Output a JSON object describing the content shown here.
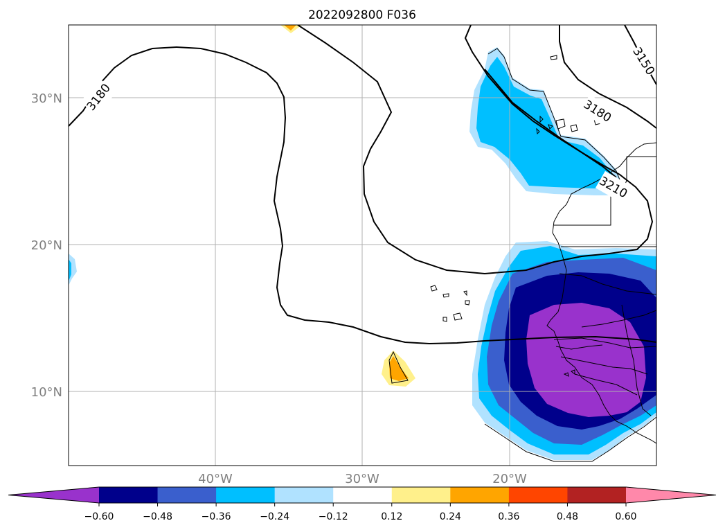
{
  "title": "2022092800 F036",
  "map": {
    "latitude_labels": [
      "30°N",
      "20°N",
      "10°N"
    ],
    "longitude_labels": [
      "40°W",
      "30°W",
      "20°W"
    ],
    "contour_labels": [
      "3180",
      "3150",
      "3180",
      "3210"
    ]
  },
  "colorbar": {
    "ticks": [
      "−0.60",
      "−0.48",
      "−0.36",
      "−0.24",
      "−0.12",
      "0.12",
      "0.24",
      "0.36",
      "0.48",
      "0.60"
    ],
    "colors": [
      "#9932cc",
      "#00008b",
      "#3a5fcd",
      "#00bfff",
      "#b0e2ff",
      "#ffffff",
      "#fff08b",
      "#ffa500",
      "#ff4500",
      "#b22222",
      "#ff88aa"
    ],
    "extend": "both"
  }
}
